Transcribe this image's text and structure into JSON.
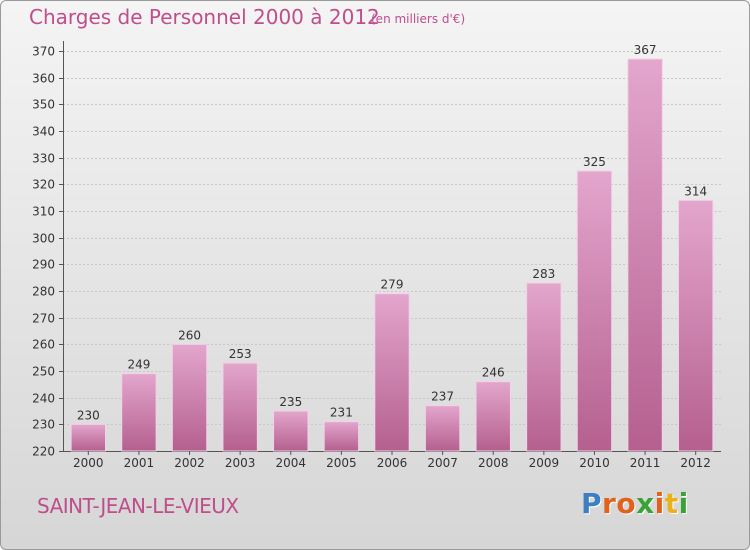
{
  "title": "Charges de Personnel 2000 à 2012",
  "subtitle": "(en milliers d'€)",
  "place_name": "SAINT-JEAN-LE-VIEUX",
  "logo": {
    "text": "Proxiti",
    "letter_colors": [
      "#3d7fc1",
      "#e0621d",
      "#e0621d",
      "#3aa335",
      "#e0621d",
      "#e8b21b",
      "#3aa335"
    ]
  },
  "colors": {
    "title": "#c04d8c",
    "bar_top": "#e3a6cd",
    "bar_bottom": "#b5608f",
    "bar_stroke": "#f2d2e6"
  },
  "chart_data": {
    "type": "bar",
    "title": "Charges de Personnel 2000 à 2012",
    "categories": [
      "2000",
      "2001",
      "2002",
      "2003",
      "2004",
      "2005",
      "2006",
      "2007",
      "2008",
      "2009",
      "2010",
      "2011",
      "2012"
    ],
    "values": [
      230,
      249,
      260,
      253,
      235,
      231,
      279,
      237,
      246,
      283,
      325,
      367,
      314
    ],
    "ylim": [
      220,
      370
    ],
    "ytick_step": 10,
    "grid": true,
    "legend": "none"
  }
}
